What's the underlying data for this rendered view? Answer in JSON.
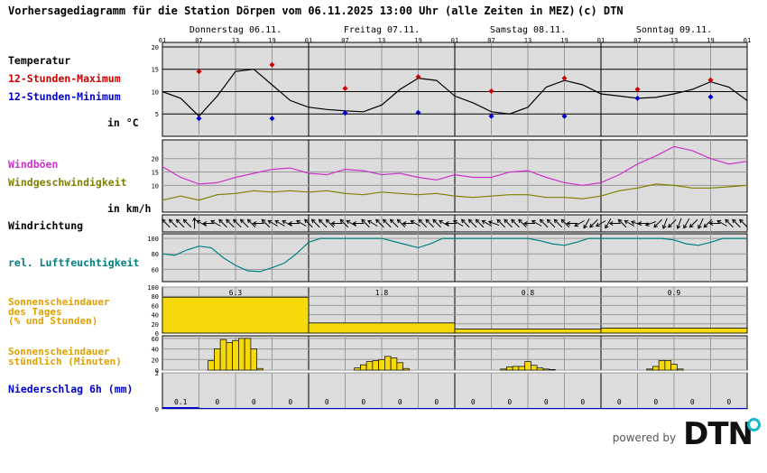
{
  "header": {
    "title": "Vorhersagediagramm für die Station Dörpen vom 06.11.2025 13:00 Uhr (alle Zeiten in MEZ)",
    "copyright": "(c) DTN"
  },
  "days": [
    "Donnerstag 06.11.",
    "Freitag 07.11.",
    "Samstag 08.11.",
    "Sonntag 09.11."
  ],
  "hour_labels": [
    "01",
    "07",
    "13",
    "19",
    "01",
    "07",
    "13",
    "19",
    "01",
    "07",
    "13",
    "19",
    "01",
    "07",
    "13",
    "19",
    "01"
  ],
  "labels": {
    "temperature": "Temperatur",
    "tmax": "12-Stunden-Maximum",
    "tmin": "12-Stunden-Minimum",
    "temp_unit": "in °C",
    "gusts": "Windböen",
    "windspeed": "Windgeschwindigkeit",
    "wind_unit": "in km/h",
    "winddir": "Windrichtung",
    "humidity": "rel. Luftfeuchtigkeit",
    "sun_daily_1": "Sonnenscheindauer",
    "sun_daily_2": "des Tages",
    "sun_daily_3": "(% und Stunden)",
    "sun_hourly_1": "Sonnenscheindauer",
    "sun_hourly_2": "stündlich (Minuten)",
    "precip": "Niederschlag 6h (mm)"
  },
  "colors": {
    "temperature": "#000000",
    "tmax": "#cc0000",
    "tmin": "#0000cc",
    "gusts": "#cc33cc",
    "windspeed": "#808000",
    "humidity": "#008080",
    "sun_label": "#e0a000",
    "sun_fill": "#f5d90a",
    "precip_label": "#0000cc",
    "panel_bg": "#dcdcdc"
  },
  "chart_data": [
    {
      "type": "line",
      "name": "temperature",
      "yticks": [
        5,
        10,
        15,
        20
      ],
      "ylim": [
        0,
        21
      ],
      "x": [
        1,
        4,
        7,
        10,
        13,
        16,
        19,
        22,
        25,
        28,
        31,
        34,
        37,
        40,
        43,
        46,
        49,
        52,
        55,
        58,
        61,
        64,
        67,
        70,
        73,
        76,
        79,
        82,
        85,
        88,
        91,
        94,
        97
      ],
      "series": [
        {
          "name": "",
          "values": [
            10,
            8.5,
            4.5,
            9,
            14.5,
            15,
            11.5,
            8,
            6.5,
            6,
            5.7,
            5.5,
            7,
            10.5,
            13,
            12.5,
            9,
            7.5,
            5.5,
            5,
            6.5,
            11,
            12.5,
            11.5,
            9.5,
            9,
            8.5,
            8.7,
            9.5,
            10.5,
            12.2,
            11,
            8
          ]
        }
      ],
      "tmax_x": [
        7,
        19,
        31,
        43,
        55,
        67,
        79,
        91
      ],
      "tmax_values": [
        14.5,
        16,
        10.7,
        13.3,
        10.1,
        13,
        10.5,
        12.6
      ],
      "tmin_x": [
        7,
        19,
        31,
        43,
        55,
        67,
        79,
        91
      ],
      "tmin_values": [
        4,
        4,
        5.2,
        5.3,
        4.5,
        4.5,
        8.5,
        8.8
      ]
    },
    {
      "type": "line",
      "name": "wind",
      "yticks": [
        10,
        15,
        20
      ],
      "ylim": [
        0,
        27
      ],
      "x": [
        1,
        4,
        7,
        10,
        13,
        16,
        19,
        22,
        25,
        28,
        31,
        34,
        37,
        40,
        43,
        46,
        49,
        52,
        55,
        58,
        61,
        64,
        67,
        70,
        73,
        76,
        79,
        82,
        85,
        88,
        91,
        94,
        97
      ],
      "series": [
        {
          "name": "",
          "values": [
            17,
            13,
            10.5,
            11,
            13,
            14.5,
            16,
            16.5,
            14.5,
            14,
            16,
            15.5,
            14,
            14.5,
            13,
            12,
            14,
            13,
            13,
            15,
            15.5,
            13,
            11,
            10,
            11,
            14,
            18,
            21,
            24.5,
            23,
            20,
            18,
            19
          ]
        },
        {
          "name": "",
          "values": [
            4.5,
            6,
            4.5,
            6.5,
            7,
            8,
            7.5,
            8,
            7.5,
            8,
            7,
            6.5,
            7.5,
            7,
            6.5,
            7,
            6,
            5.5,
            6,
            6.5,
            6.5,
            5.5,
            5.5,
            5,
            6,
            8,
            9,
            10.5,
            10,
            9,
            9,
            9.5,
            10
          ]
        }
      ]
    },
    {
      "type": "line",
      "name": "winddir",
      "arrow_angles_deg": [
        135,
        135,
        135,
        135,
        90,
        150,
        180,
        150,
        135,
        135,
        135,
        135,
        135,
        180,
        135,
        150,
        150,
        150,
        180,
        150,
        135,
        135,
        135,
        135,
        180,
        135,
        150,
        180,
        135,
        150,
        135,
        135,
        135,
        135,
        180,
        150,
        135,
        135,
        135,
        150,
        180,
        150,
        135,
        135,
        135,
        150,
        160,
        135,
        135,
        135,
        135,
        180,
        150,
        135,
        135,
        135,
        135,
        180,
        210,
        240,
        225,
        210,
        240,
        180,
        135,
        150,
        160,
        180,
        200,
        225,
        250,
        225,
        250,
        240,
        225,
        245,
        225,
        180,
        150,
        135,
        135,
        135
      ]
    },
    {
      "type": "line",
      "name": "humidity",
      "yticks": [
        60,
        80,
        100
      ],
      "ylim": [
        44,
        106
      ],
      "x": [
        1,
        3,
        5,
        7,
        9,
        11,
        13,
        15,
        17,
        19,
        21,
        23,
        25,
        27,
        29,
        31,
        33,
        35,
        37,
        39,
        41,
        43,
        45,
        47,
        49,
        51,
        53,
        55,
        57,
        59,
        61,
        63,
        65,
        67,
        69,
        71,
        73,
        75,
        77,
        79,
        81,
        83,
        85,
        87,
        89,
        91,
        93,
        95,
        97
      ],
      "series": [
        {
          "name": "",
          "values": [
            80,
            78,
            85,
            90,
            88,
            75,
            65,
            58,
            57,
            62,
            68,
            80,
            95,
            100,
            100,
            100,
            100,
            100,
            100,
            96,
            92,
            88,
            93,
            100,
            100,
            100,
            100,
            100,
            100,
            100,
            100,
            97,
            93,
            91,
            95,
            100,
            100,
            100,
            100,
            100,
            100,
            100,
            98,
            93,
            91,
            95,
            100,
            100,
            100
          ]
        }
      ]
    },
    {
      "type": "bar",
      "name": "sun_daily",
      "yticks": [
        0,
        20,
        40,
        60,
        80,
        100
      ],
      "ylim": [
        0,
        100
      ],
      "categories": [
        "06.11.",
        "07.11.",
        "08.11.",
        "09.11."
      ],
      "values": [
        78,
        22,
        9,
        11
      ],
      "value_labels": [
        "6.3",
        "1.8",
        "0.8",
        "0.9"
      ]
    },
    {
      "type": "bar",
      "name": "sun_hourly",
      "yticks": [
        0,
        20,
        40,
        60
      ],
      "ylim": [
        0,
        65
      ],
      "x": [
        9,
        10,
        11,
        12,
        13,
        14,
        15,
        16,
        17,
        33,
        34,
        35,
        36,
        37,
        38,
        39,
        40,
        41,
        57,
        58,
        59,
        60,
        61,
        62,
        63,
        64,
        65,
        81,
        82,
        83,
        84,
        85,
        86
      ],
      "values": [
        18,
        40,
        58,
        52,
        56,
        60,
        60,
        40,
        3,
        4,
        10,
        16,
        18,
        20,
        26,
        23,
        14,
        3,
        2,
        6,
        7,
        7,
        16,
        9,
        4,
        2,
        1,
        2,
        7,
        18,
        18,
        11,
        2
      ]
    },
    {
      "type": "bar",
      "name": "precip",
      "yticks": [
        0,
        2
      ],
      "ylim": [
        0,
        2
      ],
      "categories": [
        "1",
        "2",
        "3",
        "4",
        "5",
        "6",
        "7",
        "8",
        "9",
        "10",
        "11",
        "12",
        "13",
        "14",
        "15",
        "16"
      ],
      "values": [
        0.1,
        0,
        0,
        0,
        0,
        0,
        0,
        0,
        0,
        0,
        0,
        0,
        0,
        0,
        0,
        0
      ],
      "value_labels": [
        "0.1",
        "0",
        "0",
        "0",
        "0",
        "0",
        "0",
        "0",
        "0",
        "0",
        "0",
        "0",
        "0",
        "0",
        "0",
        "0"
      ]
    }
  ]
}
